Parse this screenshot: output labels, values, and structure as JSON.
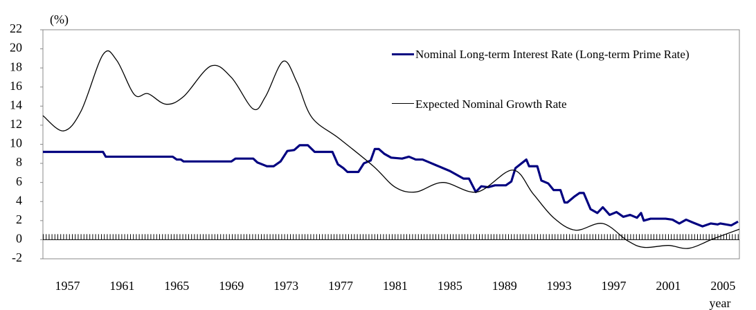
{
  "chart_data": {
    "type": "line",
    "y_label": "(%)",
    "x_label": "year",
    "xlim": [
      1955.2,
      2006.2
    ],
    "xticks": [
      1957,
      1961,
      1965,
      1969,
      1973,
      1977,
      1981,
      1985,
      1989,
      1993,
      1997,
      2001,
      2005
    ],
    "ylim": [
      -2,
      22
    ],
    "yticks": [
      -2,
      0,
      2,
      4,
      6,
      8,
      10,
      12,
      14,
      16,
      18,
      20,
      22
    ],
    "series": [
      {
        "name": "Nominal Long-term Interest Rate (Long-term Prime Rate)",
        "color": "#000080",
        "x": [
          1955.2,
          1959.6,
          1959.8,
          1964.7,
          1965.0,
          1965.3,
          1965.5,
          1969.0,
          1969.3,
          1970.6,
          1970.9,
          1971.6,
          1972.1,
          1972.6,
          1973.1,
          1973.6,
          1974.0,
          1974.6,
          1975.1,
          1976.4,
          1976.8,
          1977.2,
          1977.5,
          1978.3,
          1978.7,
          1979.2,
          1979.5,
          1979.8,
          1980.2,
          1980.7,
          1981.5,
          1982.0,
          1982.5,
          1983.0,
          1983.5,
          1984.0,
          1984.5,
          1985.0,
          1985.5,
          1986.0,
          1986.4,
          1986.9,
          1987.3,
          1987.8,
          1988.3,
          1989.1,
          1989.5,
          1989.8,
          1990.6,
          1990.8,
          1991.4,
          1991.7,
          1992.2,
          1992.6,
          1993.1,
          1993.4,
          1993.6,
          1994.1,
          1994.5,
          1994.8,
          1995.3,
          1995.8,
          1996.2,
          1996.7,
          1997.2,
          1997.7,
          1998.2,
          1998.7,
          1999.0,
          1999.2,
          1999.7,
          2000.8,
          2001.3,
          2001.8,
          2002.3,
          2002.8,
          2003.5,
          2004.1,
          2004.6,
          2004.8,
          2005.6,
          2006.1
        ],
        "values": [
          9.2,
          9.2,
          8.7,
          8.7,
          8.4,
          8.4,
          8.2,
          8.2,
          8.5,
          8.5,
          8.1,
          7.7,
          7.7,
          8.2,
          9.3,
          9.4,
          9.9,
          9.9,
          9.2,
          9.2,
          7.9,
          7.5,
          7.1,
          7.1,
          8.0,
          8.3,
          9.5,
          9.5,
          9.0,
          8.6,
          8.5,
          8.7,
          8.4,
          8.4,
          8.1,
          7.8,
          7.5,
          7.2,
          6.8,
          6.4,
          6.4,
          5.0,
          5.6,
          5.5,
          5.7,
          5.7,
          6.1,
          7.5,
          8.4,
          7.7,
          7.7,
          6.2,
          5.9,
          5.2,
          5.2,
          3.9,
          3.9,
          4.5,
          4.9,
          4.9,
          3.2,
          2.8,
          3.4,
          2.6,
          2.9,
          2.4,
          2.6,
          2.3,
          2.8,
          2.0,
          2.2,
          2.2,
          2.1,
          1.7,
          2.1,
          1.8,
          1.4,
          1.7,
          1.6,
          1.7,
          1.5,
          1.9
        ]
      },
      {
        "name": "Expected Nominal Growth Rate",
        "color": "#000000",
        "x": [
          1955.2,
          1956.7,
          1958.0,
          1959.6,
          1960.6,
          1961.9,
          1962.9,
          1964.2,
          1965.5,
          1967.5,
          1969.0,
          1970.6,
          1971.5,
          1972.8,
          1973.8,
          1974.9,
          1976.9,
          1979.4,
          1981.0,
          1982.5,
          1984.5,
          1987.0,
          1989.6,
          1991.1,
          1992.6,
          1994.2,
          1996.2,
          1998.0,
          1999.2,
          2001.0,
          2002.5,
          2004.3,
          2006.2
        ],
        "values": [
          13.0,
          11.4,
          13.5,
          19.4,
          18.8,
          15.2,
          15.3,
          14.2,
          15.0,
          18.2,
          17.0,
          13.7,
          15.0,
          18.7,
          16.5,
          12.8,
          10.6,
          7.7,
          5.5,
          5.0,
          6.0,
          5.0,
          7.3,
          4.8,
          2.3,
          1.0,
          1.7,
          -0.1,
          -0.8,
          -0.6,
          -0.9,
          0.1,
          1.1
        ]
      }
    ]
  }
}
